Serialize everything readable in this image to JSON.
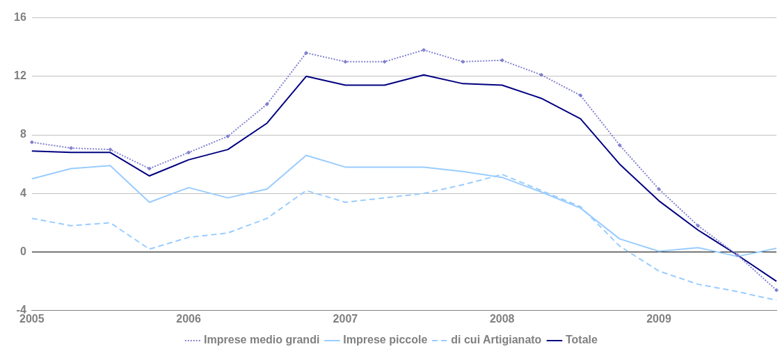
{
  "chart_data": {
    "type": "line",
    "categories": [
      "2005",
      null,
      null,
      null,
      "2006",
      null,
      null,
      null,
      "2007",
      null,
      null,
      null,
      "2008",
      null,
      null,
      null,
      "2009",
      null,
      null,
      null
    ],
    "series": [
      {
        "name": "Imprese medio grandi",
        "color": "#8080d0",
        "marker": "diamond",
        "line_style": "dotted",
        "values": [
          7.5,
          7.1,
          7.0,
          5.7,
          6.8,
          7.9,
          10.1,
          13.6,
          13.0,
          13.0,
          13.8,
          13.0,
          13.1,
          12.1,
          10.7,
          7.3,
          4.3,
          1.8,
          -0.2,
          -2.6
        ]
      },
      {
        "name": "Imprese piccole",
        "color": "#99ccff",
        "marker": "none",
        "line_style": "solid",
        "values": [
          5.0,
          5.7,
          5.9,
          3.4,
          4.4,
          3.7,
          4.3,
          6.6,
          5.8,
          5.8,
          5.8,
          5.5,
          5.1,
          4.1,
          3.0,
          0.9,
          0.05,
          0.3,
          -0.3,
          0.25
        ]
      },
      {
        "name": "di cui Artigianato",
        "color": "#99ccff",
        "marker": "none",
        "line_style": "dashed",
        "values": [
          2.3,
          1.8,
          2.0,
          0.2,
          1.0,
          1.3,
          2.3,
          4.2,
          3.4,
          3.7,
          4.0,
          4.6,
          5.3,
          4.2,
          3.1,
          0.4,
          -1.3,
          -2.2,
          -2.7,
          -3.3
        ]
      },
      {
        "name": "Totale",
        "color": "#000080",
        "marker": "none",
        "line_style": "solid",
        "values": [
          6.9,
          6.8,
          6.8,
          5.2,
          6.3,
          7.0,
          8.8,
          12.0,
          11.4,
          11.4,
          12.1,
          11.5,
          11.4,
          10.5,
          9.1,
          6.0,
          3.5,
          1.5,
          -0.2,
          -2.0
        ]
      }
    ],
    "ylim": [
      -4,
      16
    ],
    "yticks": [
      -4,
      0,
      4,
      8,
      12,
      16
    ],
    "grid": "y",
    "legend": "bottom"
  }
}
